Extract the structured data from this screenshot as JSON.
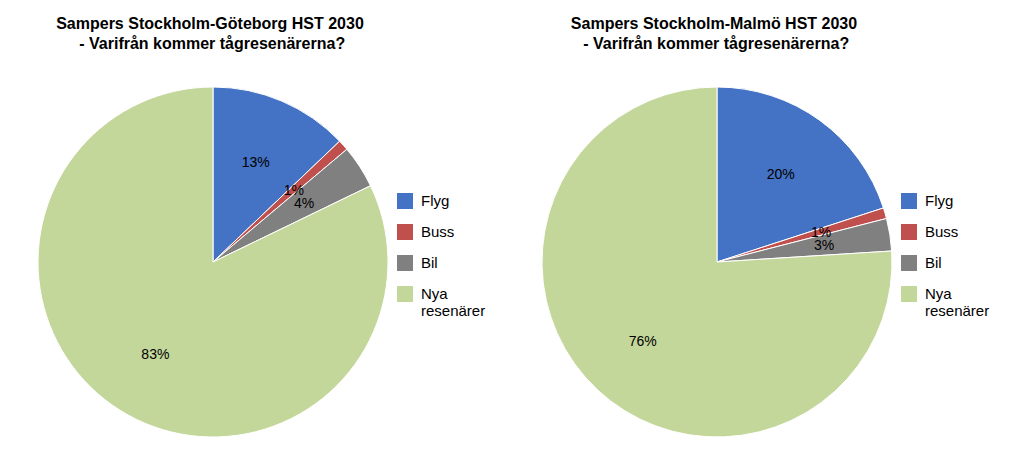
{
  "chart_data": [
    {
      "type": "pie",
      "title": "Sampers Stockholm-Göteborg HST 2030\n - Varifrån kommer tågresenärerna?",
      "categories": [
        "Flyg",
        "Buss",
        "Bil",
        "Nya\nresenärer"
      ],
      "values": [
        13,
        1,
        4,
        83
      ],
      "value_labels": [
        "13%",
        "1%",
        "4%",
        "83%"
      ],
      "data_labels": true,
      "colors": [
        "#4472C4",
        "#C0504D",
        "#808080",
        "#C4D79B"
      ],
      "legend": "right"
    },
    {
      "type": "pie",
      "title": "Sampers Stockholm-Malmö HST 2030\n - Varifrån kommer tågresenärerna?",
      "categories": [
        "Flyg",
        "Buss",
        "Bil",
        "Nya\nresenärer"
      ],
      "values": [
        20,
        1,
        3,
        76
      ],
      "value_labels": [
        "20%",
        "1%",
        "3%",
        "76%"
      ],
      "data_labels": true,
      "colors": [
        "#4472C4",
        "#C0504D",
        "#808080",
        "#C4D79B"
      ],
      "legend": "right"
    }
  ]
}
